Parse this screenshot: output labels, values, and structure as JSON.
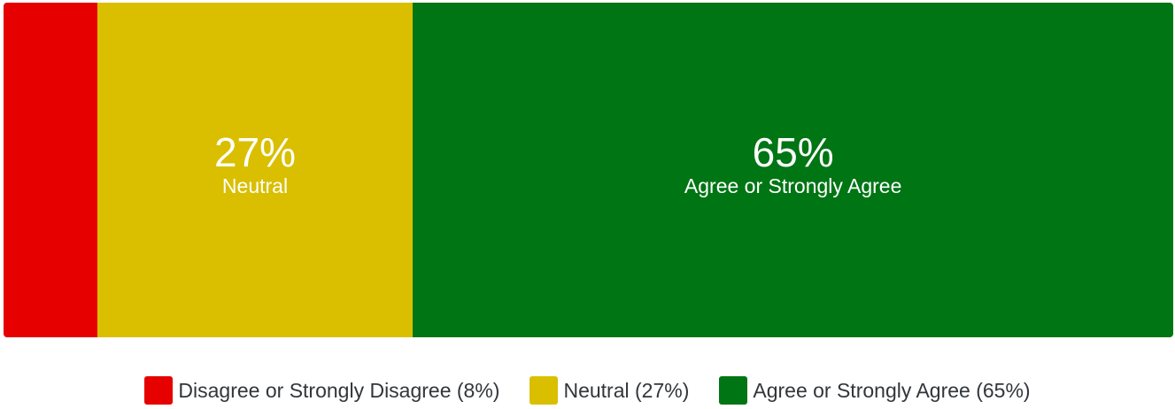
{
  "chart_data": {
    "type": "bar",
    "orientation": "horizontal",
    "stacked": true,
    "normalized": true,
    "categories": [
      "Disagree or Strongly Disagree",
      "Neutral",
      "Agree or Strongly Agree"
    ],
    "values": [
      8,
      27,
      65
    ],
    "unit": "%",
    "colors": [
      "#e60000",
      "#d9bf00",
      "#007514"
    ],
    "segment_labels": [
      {
        "value": "",
        "label": ""
      },
      {
        "value": "27%",
        "label": "Neutral"
      },
      {
        "value": "65%",
        "label": "Agree or Strongly Agree"
      }
    ],
    "legend": {
      "placement": "bottom-center",
      "entries": [
        "Disagree or Strongly Disagree (8%)",
        "Neutral (27%)",
        "Agree or Strongly Agree (65%)"
      ]
    },
    "title": "",
    "xlabel": "",
    "ylabel": ""
  }
}
